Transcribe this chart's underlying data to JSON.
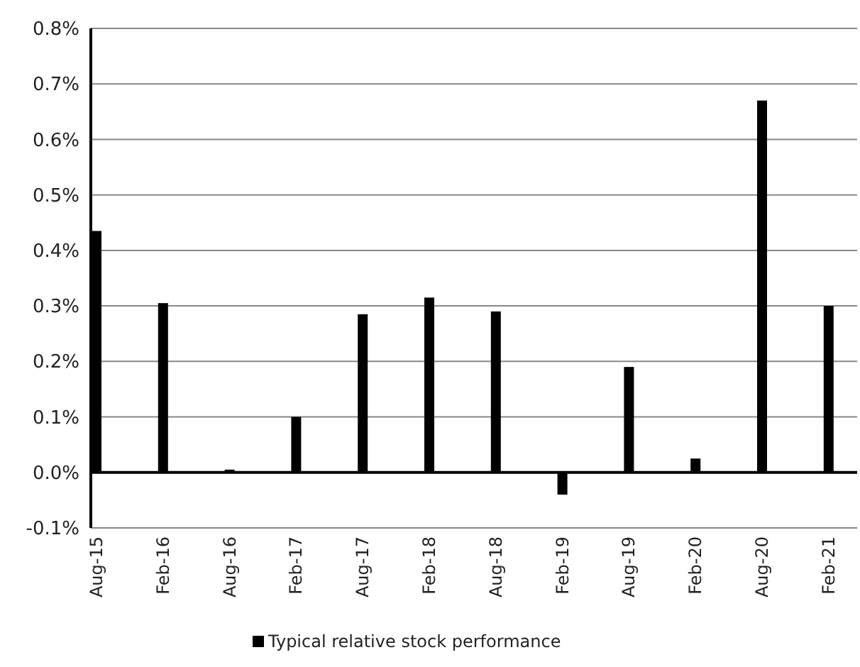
{
  "chart_data": {
    "type": "bar",
    "categories": [
      "Aug-15",
      "Feb-16",
      "Aug-16",
      "Feb-17",
      "Aug-17",
      "Feb-18",
      "Aug-18",
      "Feb-19",
      "Aug-19",
      "Feb-20",
      "Aug-20",
      "Feb-21"
    ],
    "series": [
      {
        "name": "Typical relative stock performance",
        "color": "#000000",
        "values": [
          0.435,
          0.305,
          0.005,
          0.1,
          0.285,
          0.315,
          0.29,
          -0.04,
          0.19,
          0.025,
          0.67,
          0.3
        ]
      }
    ],
    "ylim": [
      -0.1,
      0.8
    ],
    "yticks": [
      {
        "value": -0.1,
        "label": "-0.1%"
      },
      {
        "value": 0,
        "label": "0.0%"
      },
      {
        "value": 0.1,
        "label": "0.1%"
      },
      {
        "value": 0.2,
        "label": "0.2%"
      },
      {
        "value": 0.3,
        "label": "0.3%"
      },
      {
        "value": 0.4,
        "label": "0.4%"
      },
      {
        "value": 0.5,
        "label": "0.5%"
      },
      {
        "value": 0.6,
        "label": "0.6%"
      },
      {
        "value": 0.7,
        "label": "0.7%"
      },
      {
        "value": 0.8,
        "label": "0.8%"
      }
    ],
    "grid": "y",
    "legend": "bottom"
  }
}
